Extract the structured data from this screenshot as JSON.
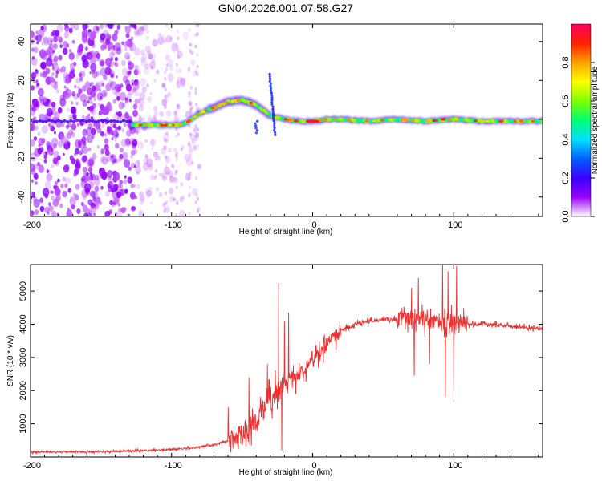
{
  "figure": {
    "title": "GN04.2026.001.07.58.G27"
  },
  "chart_data": [
    {
      "type": "heatmap",
      "name": "spectrogram",
      "xlabel": "Height of straight line (km)",
      "ylabel": "Frequency (Hz)",
      "xlim": [
        -200,
        163
      ],
      "ylim": [
        -50,
        49
      ],
      "xticks": [
        -200,
        -100,
        0,
        100
      ],
      "xtick_labels": [
        "-200",
        "-100",
        "0",
        "100"
      ],
      "yticks": [
        -40,
        -20,
        0,
        20,
        40
      ],
      "ytick_labels": [
        "-40",
        "-20",
        "0",
        "20",
        "40"
      ],
      "colorbar": {
        "label": "Normalized spectral amplitude",
        "range": [
          0,
          1
        ],
        "ticks": [
          0.0,
          0.2,
          0.4,
          0.6,
          0.8
        ],
        "tick_labels": [
          "0.0",
          "0.2",
          "0.4",
          "0.6",
          "0.8"
        ],
        "colors": [
          "#ffffff",
          "#9a00ff",
          "#3a00ff",
          "#0060ff",
          "#00e0ff",
          "#00ff70",
          "#80ff00",
          "#ffff00",
          "#ffa000",
          "#ff2000",
          "#ff0060"
        ]
      },
      "ridge": {
        "x": [
          -128,
          -110,
          -95,
          -90,
          -80,
          -70,
          -60,
          -50,
          -42,
          -36,
          -32,
          -28,
          -25,
          -20,
          -10,
          0,
          10,
          20,
          40,
          60,
          80,
          100,
          120,
          140,
          163
        ],
        "y": [
          -3,
          -3,
          -3,
          -2,
          3,
          6,
          9,
          10,
          8,
          5,
          3,
          1,
          1,
          0,
          -1,
          -1,
          0,
          0,
          -1,
          0,
          -1,
          0,
          -1,
          -1,
          -1
        ],
        "peak_amplitude": 0.95
      },
      "noise_region_xlim": [
        -200,
        -80
      ]
    },
    {
      "type": "line",
      "name": "snr",
      "xlabel": "Height of straight line (km)",
      "ylabel": "SNR (10 * v/v)",
      "xlim": [
        -200,
        163
      ],
      "ylim": [
        0,
        5800
      ],
      "xticks": [
        -200,
        -100,
        0,
        100
      ],
      "xtick_labels": [
        "-200",
        "-100",
        "0",
        "100"
      ],
      "yticks": [
        1000,
        2000,
        3000,
        4000,
        5000
      ],
      "ytick_labels": [
        "1000",
        "2000",
        "3000",
        "4000",
        "5000"
      ],
      "color": "#ee3030",
      "envelope": {
        "x": [
          -200,
          -180,
          -160,
          -140,
          -120,
          -100,
          -90,
          -80,
          -70,
          -60,
          -50,
          -45,
          -40,
          -35,
          -30,
          -25,
          -20,
          -15,
          -10,
          -5,
          0,
          10,
          20,
          30,
          40,
          50,
          60,
          70,
          75,
          80,
          85,
          90,
          95,
          100,
          105,
          110,
          120,
          140,
          163
        ],
        "y": [
          150,
          150,
          160,
          170,
          190,
          230,
          260,
          300,
          380,
          480,
          700,
          900,
          1100,
          1400,
          1700,
          2000,
          2200,
          2400,
          2500,
          2700,
          2900,
          3400,
          3800,
          4000,
          4100,
          4150,
          4150,
          4200,
          4200,
          4100,
          4050,
          4100,
          4100,
          4100,
          4050,
          4000,
          4000,
          3950,
          3850
        ]
      },
      "noise_amplitude": [
        {
          "x": [
            -200,
            -60
          ],
          "amp": 60
        },
        {
          "x": [
            -60,
            -20
          ],
          "amp": 700
        },
        {
          "x": [
            -20,
            20
          ],
          "amp": 450
        },
        {
          "x": [
            20,
            60
          ],
          "amp": 120
        },
        {
          "x": [
            60,
            110
          ],
          "amp": 500
        },
        {
          "x": [
            110,
            163
          ],
          "amp": 120
        }
      ],
      "spikes": [
        {
          "x": -60,
          "y": 1500
        },
        {
          "x": -45,
          "y": 2400
        },
        {
          "x": -32,
          "y": 2800
        },
        {
          "x": -24,
          "y": 5250
        },
        {
          "x": -22,
          "y": 200
        },
        {
          "x": -20,
          "y": 4100
        },
        {
          "x": -17,
          "y": 4350
        },
        {
          "x": -12,
          "y": 1900
        },
        {
          "x": 0,
          "y": 3000
        },
        {
          "x": 70,
          "y": 5100
        },
        {
          "x": 72,
          "y": 2450
        },
        {
          "x": 75,
          "y": 5400
        },
        {
          "x": 83,
          "y": 2800
        },
        {
          "x": 92,
          "y": 5800
        },
        {
          "x": 94,
          "y": 1800
        },
        {
          "x": 96,
          "y": 5600
        },
        {
          "x": 100,
          "y": 1650
        },
        {
          "x": 102,
          "y": 5750
        }
      ]
    }
  ]
}
